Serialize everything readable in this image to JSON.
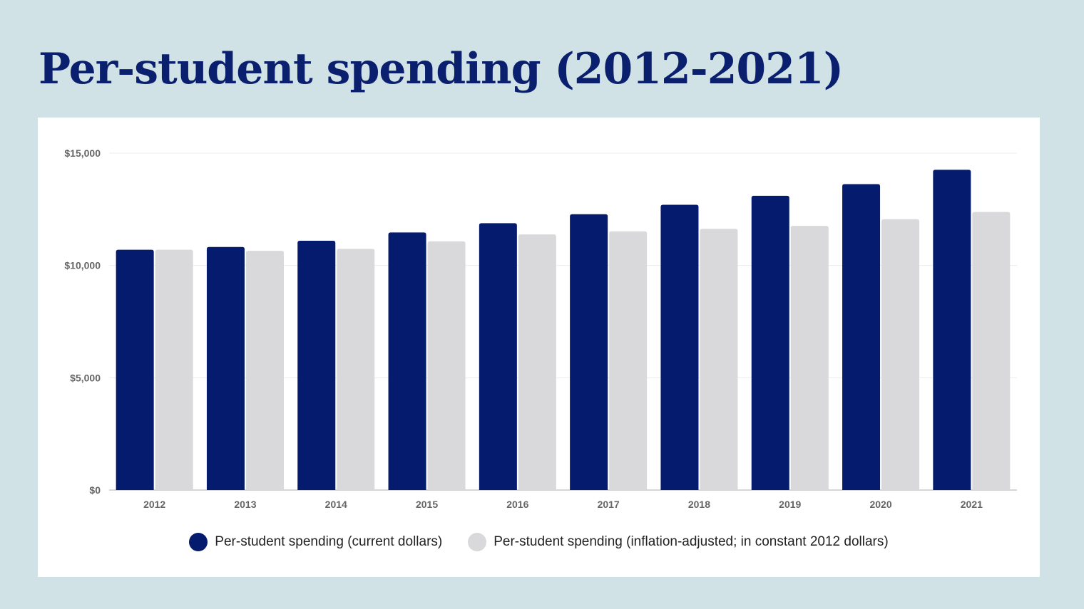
{
  "page": {
    "title": "Per-student spending (2012-2021)",
    "background_color": "#d0e2e6",
    "title_color": "#0a1f6e"
  },
  "chart_data": {
    "type": "bar",
    "title": "Per-student spending (2012-2021)",
    "categories": [
      "2012",
      "2013",
      "2014",
      "2015",
      "2016",
      "2017",
      "2018",
      "2019",
      "2020",
      "2021"
    ],
    "series": [
      {
        "name": "Per-student spending (current dollars)",
        "color": "#041b6e",
        "values": [
          10700,
          10820,
          11100,
          11470,
          11880,
          12280,
          12700,
          13100,
          13620,
          14260
        ]
      },
      {
        "name": "Per-student spending (inflation-adjusted; in constant 2012 dollars)",
        "color": "#d9d9db",
        "values": [
          10700,
          10650,
          10740,
          11070,
          11380,
          11520,
          11630,
          11760,
          12060,
          12380
        ]
      }
    ],
    "ylim": [
      0,
      15000
    ],
    "yticks": [
      0,
      5000,
      10000,
      15000
    ],
    "ytick_labels": [
      "$0",
      "$5,000",
      "$10,000",
      "$15,000"
    ],
    "xlabel": "",
    "ylabel": "",
    "grid": true,
    "legend_position": "bottom"
  }
}
